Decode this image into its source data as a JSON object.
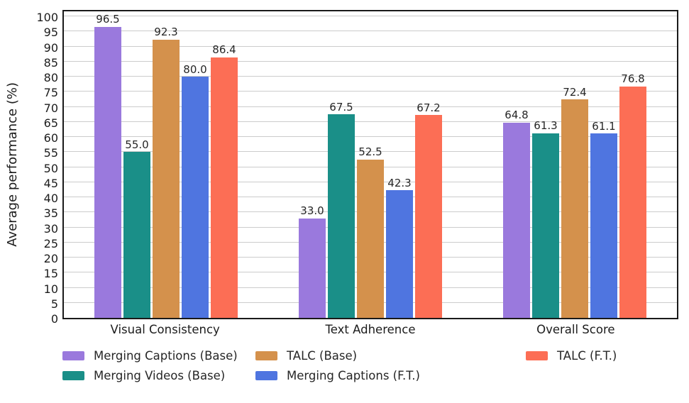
{
  "chart_data": {
    "type": "bar",
    "title": "",
    "xlabel": "",
    "ylabel": "Average performance (%)",
    "ylim": [
      0,
      100
    ],
    "ytick_step": 5,
    "grid": true,
    "legend_position": "bottom",
    "value_label_decimals": 1,
    "categories": [
      "Visual Consistency",
      "Text Adherence",
      "Overall Score"
    ],
    "series": [
      {
        "name": "Merging Captions (Base)",
        "color": "#9a79dd",
        "values": [
          96.5,
          33.0,
          64.8
        ]
      },
      {
        "name": "Merging Videos (Base)",
        "color": "#1a8f88",
        "values": [
          55.0,
          67.5,
          61.3
        ]
      },
      {
        "name": "TALC (Base)",
        "color": "#d4914c",
        "values": [
          92.3,
          52.5,
          72.4
        ]
      },
      {
        "name": "Merging Captions (F.T.)",
        "color": "#4f75e0",
        "values": [
          80.0,
          42.3,
          61.1
        ]
      },
      {
        "name": "TALC (F.T.)",
        "color": "#fc6e55",
        "values": [
          86.4,
          67.2,
          76.8
        ]
      }
    ],
    "colors": {
      "spine": "#1a1a1a",
      "grid": "#cccccc",
      "text": "#1c1c1c"
    }
  }
}
